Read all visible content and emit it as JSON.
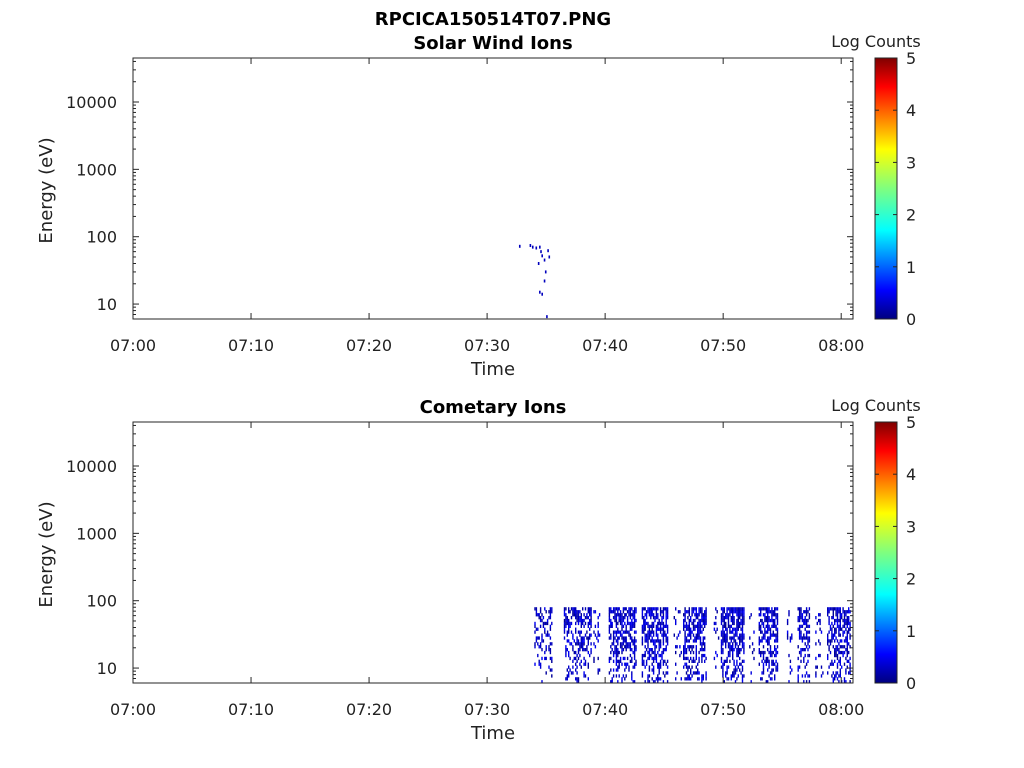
{
  "figure_title": "RPCICA150514T07.PNG",
  "chart_data": [
    {
      "type": "heatmap",
      "title": "Solar Wind Ions",
      "xlabel": "Time",
      "ylabel": "Energy (eV)",
      "x_ticks": [
        "07:00",
        "07:10",
        "07:20",
        "07:30",
        "07:40",
        "07:50",
        "08:00"
      ],
      "x_range_min": [
        0,
        61
      ],
      "y_ticks": [
        "10",
        "100",
        "1000",
        "10000"
      ],
      "y_tick_values": [
        10,
        100,
        1000,
        10000
      ],
      "y_log": true,
      "y_range": [
        6,
        45000
      ],
      "colorbar": {
        "label": "Log Counts",
        "ticks": [
          "0",
          "1",
          "2",
          "3",
          "4",
          "5"
        ],
        "range": [
          0,
          5
        ]
      },
      "points": [
        {
          "t": 32.7,
          "e": 72,
          "v": 0.3
        },
        {
          "t": 33.6,
          "e": 74,
          "v": 0.3
        },
        {
          "t": 33.8,
          "e": 70,
          "v": 0.3
        },
        {
          "t": 34.1,
          "e": 68,
          "v": 0.3
        },
        {
          "t": 34.4,
          "e": 70,
          "v": 0.3
        },
        {
          "t": 34.5,
          "e": 60,
          "v": 0.3
        },
        {
          "t": 34.6,
          "e": 52,
          "v": 0.3
        },
        {
          "t": 34.8,
          "e": 45,
          "v": 0.3
        },
        {
          "t": 34.3,
          "e": 40,
          "v": 0.3
        },
        {
          "t": 35.1,
          "e": 62,
          "v": 0.3
        },
        {
          "t": 35.2,
          "e": 50,
          "v": 0.3
        },
        {
          "t": 34.9,
          "e": 30,
          "v": 0.3
        },
        {
          "t": 34.8,
          "e": 22,
          "v": 0.3
        },
        {
          "t": 34.4,
          "e": 15,
          "v": 0.3
        },
        {
          "t": 34.6,
          "e": 14,
          "v": 0.3
        },
        {
          "t": 35.0,
          "e": 6.5,
          "v": 0.3
        }
      ]
    },
    {
      "type": "heatmap",
      "title": "Cometary Ions",
      "xlabel": "Time",
      "ylabel": "Energy (eV)",
      "x_ticks": [
        "07:00",
        "07:10",
        "07:20",
        "07:30",
        "07:40",
        "07:50",
        "08:00"
      ],
      "x_range_min": [
        0,
        61
      ],
      "y_ticks": [
        "10",
        "100",
        "1000",
        "10000"
      ],
      "y_tick_values": [
        10,
        100,
        1000,
        10000
      ],
      "y_log": true,
      "y_range": [
        6,
        45000
      ],
      "colorbar": {
        "label": "Log Counts",
        "ticks": [
          "0",
          "1",
          "2",
          "3",
          "4",
          "5"
        ],
        "range": [
          0,
          5
        ]
      },
      "activity_intervals": [
        {
          "start": 34.0,
          "end": 35.5,
          "density": 0.45
        },
        {
          "start": 36.5,
          "end": 38.8,
          "density": 0.6
        },
        {
          "start": 39.0,
          "end": 39.5,
          "density": 0.15
        },
        {
          "start": 40.3,
          "end": 42.6,
          "density": 0.75
        },
        {
          "start": 43.1,
          "end": 45.3,
          "density": 0.8
        },
        {
          "start": 45.8,
          "end": 46.4,
          "density": 0.2
        },
        {
          "start": 46.6,
          "end": 48.6,
          "density": 0.7
        },
        {
          "start": 49.2,
          "end": 49.6,
          "density": 0.2
        },
        {
          "start": 49.8,
          "end": 51.8,
          "density": 0.8
        },
        {
          "start": 52.2,
          "end": 52.6,
          "density": 0.2
        },
        {
          "start": 53.0,
          "end": 54.6,
          "density": 0.75
        },
        {
          "start": 55.4,
          "end": 55.8,
          "density": 0.2
        },
        {
          "start": 56.3,
          "end": 57.3,
          "density": 0.6
        },
        {
          "start": 57.8,
          "end": 58.4,
          "density": 0.25
        },
        {
          "start": 58.8,
          "end": 60.8,
          "density": 0.7
        }
      ],
      "energy_band": [
        6,
        80
      ]
    }
  ]
}
